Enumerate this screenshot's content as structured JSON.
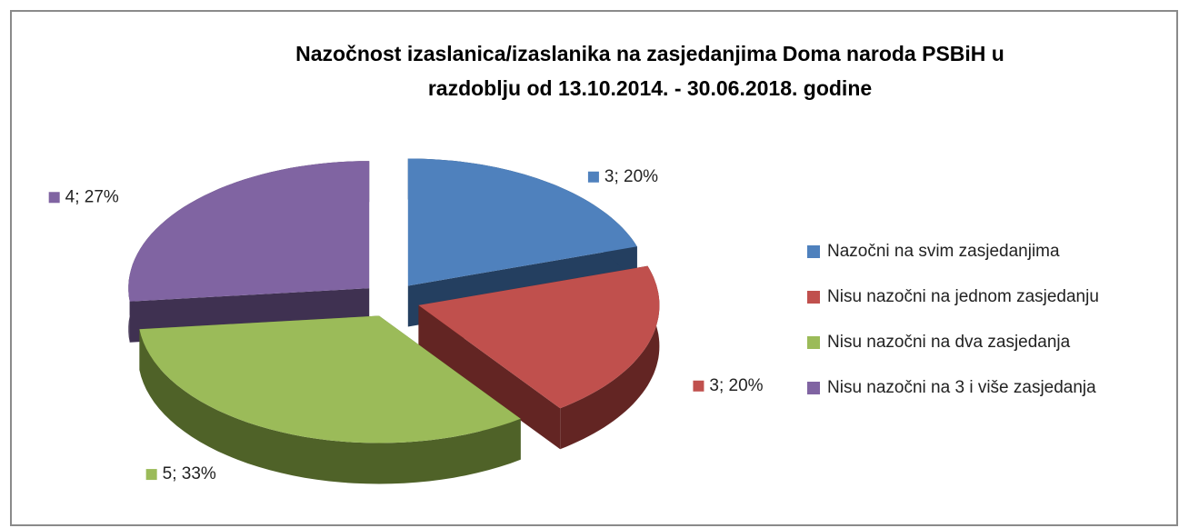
{
  "chart_data": {
    "type": "pie3d",
    "title": "Nazočnost izaslanica/izaslanika na zasjedanjima Doma naroda PSBiH u razdoblju od 13.10.2014. - 30.06.2018. godine",
    "categories": [
      "Nazočni na svim zasjedanjima",
      "Nisu nazočni na jednom zasjedanju",
      "Nisu nazočni na dva zasjedanja",
      "Nisu nazočni na 3 i više zasjedanja"
    ],
    "values": [
      3,
      3,
      5,
      4
    ],
    "value_labels": [
      "3; 20%",
      "3; 20%",
      "5; 33%",
      "4; 27%"
    ],
    "colors": [
      "#4f81bd",
      "#c0504d",
      "#9bbb59",
      "#8064a2"
    ],
    "side_colors": [
      "#243f60",
      "#632523",
      "#4f6228",
      "#3f3151"
    ],
    "legend": "right"
  }
}
